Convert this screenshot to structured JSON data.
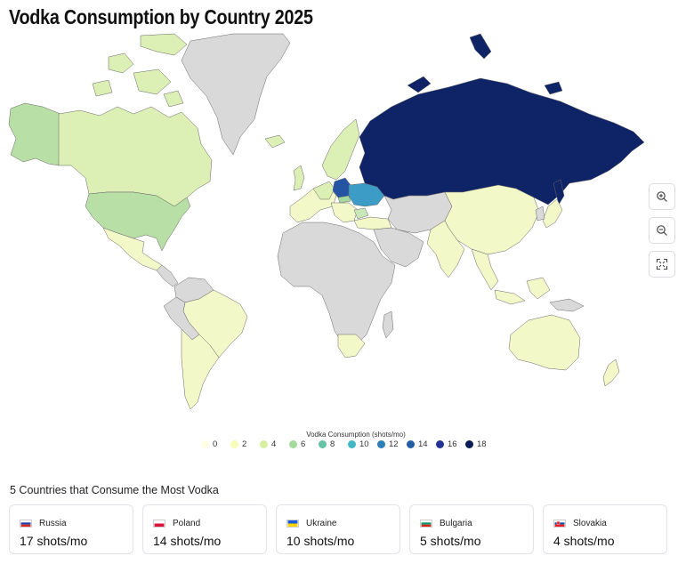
{
  "title": "Vodka Consumption by Country 2025",
  "map": {
    "metric": "Vodka Consumption (shots/mo)",
    "colors": {
      "no_data": "#d9d9d9",
      "ocean": "#ffffff",
      "russia": "#0f2466",
      "poland": "#2455a4",
      "ukraine": "#3d9cc6",
      "bulgaria": "#c9e8b8",
      "low": "#f3f8c8",
      "mid": "#dcefb4",
      "usa": "#b8e0a6",
      "border": "#555555"
    }
  },
  "controls": {
    "zoom_in": "zoom-in-icon",
    "zoom_out": "zoom-out-icon",
    "reset": "fit-screen-icon"
  },
  "legend": {
    "title": "Vodka Consumption (shots/mo)",
    "items": [
      {
        "label": "0",
        "color": "#ffffe5"
      },
      {
        "label": "2",
        "color": "#f7fcb9"
      },
      {
        "label": "4",
        "color": "#d9f0a3"
      },
      {
        "label": "6",
        "color": "#a6dba0"
      },
      {
        "label": "8",
        "color": "#66c2a4"
      },
      {
        "label": "10",
        "color": "#41b6c4"
      },
      {
        "label": "12",
        "color": "#2c7fb8"
      },
      {
        "label": "14",
        "color": "#225ea8"
      },
      {
        "label": "16",
        "color": "#253494"
      },
      {
        "label": "18",
        "color": "#081d58"
      }
    ]
  },
  "top_section": {
    "title": "5 Countries that Consume the Most Vodka",
    "cards": [
      {
        "country": "Russia",
        "value": "17 shots/mo",
        "flag": "russia"
      },
      {
        "country": "Poland",
        "value": "14 shots/mo",
        "flag": "poland"
      },
      {
        "country": "Ukraine",
        "value": "10 shots/mo",
        "flag": "ukraine"
      },
      {
        "country": "Bulgaria",
        "value": "5 shots/mo",
        "flag": "bulgaria"
      },
      {
        "country": "Slovakia",
        "value": "4 shots/mo",
        "flag": "slovakia"
      }
    ]
  }
}
